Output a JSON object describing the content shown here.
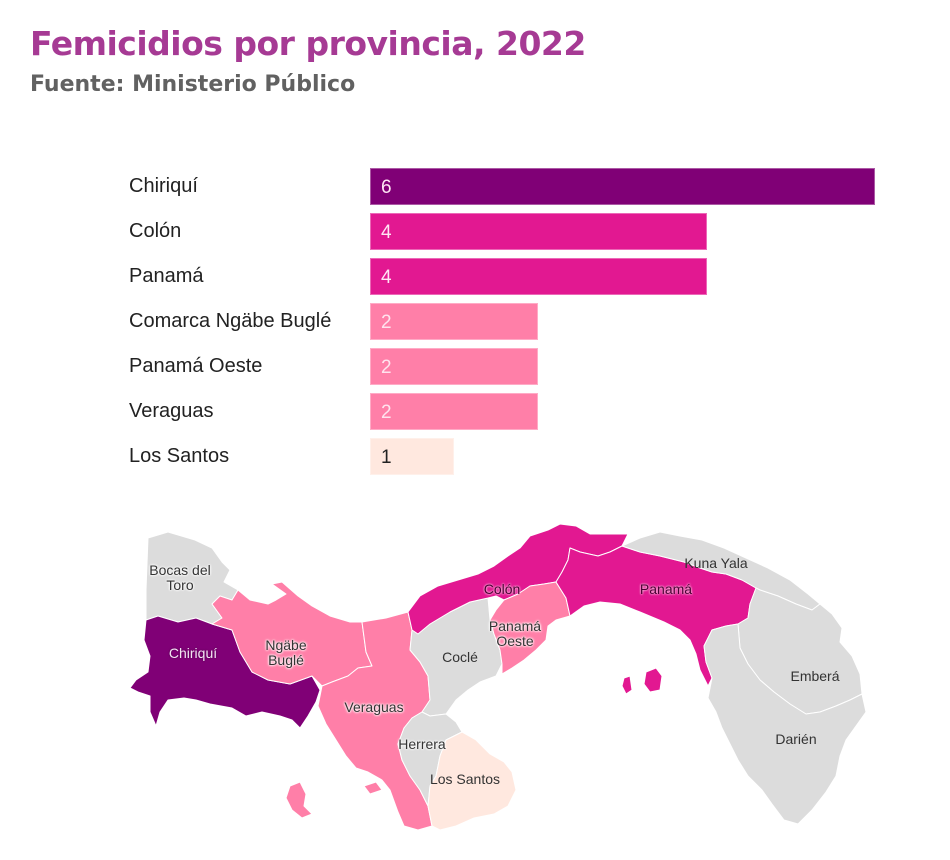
{
  "header": {
    "title": "Femicidios por provincia, 2022",
    "subtitle": "Fuente: Ministerio Público"
  },
  "colors": {
    "title": "#a63a94",
    "subtitle": "#616161",
    "level_6": "#800076",
    "level_4": "#e21891",
    "level_2": "#ff7fa8",
    "level_1": "#ffe8df",
    "level_0": "#dcdcdc"
  },
  "chart_data": {
    "type": "bar",
    "orientation": "horizontal",
    "title": "Femicidios por provincia, 2022",
    "subtitle": "Fuente: Ministerio Público",
    "xlabel": "",
    "ylabel": "",
    "categories": [
      "Chiriquí",
      "Colón",
      "Panamá",
      "Comarca Ngäbe Buglé",
      "Panamá Oeste",
      "Veraguas",
      "Los Santos"
    ],
    "values": [
      6,
      4,
      4,
      2,
      2,
      2,
      1
    ],
    "value_labels": [
      "6",
      "4",
      "4",
      "2",
      "2",
      "2",
      "1"
    ],
    "bar_colors": [
      "#800076",
      "#e21891",
      "#e21891",
      "#ff7fa8",
      "#ff7fa8",
      "#ff7fa8",
      "#ffe8df"
    ],
    "xlim": [
      0,
      6
    ],
    "grid": false,
    "legend": "none",
    "data_labels": "inside-left"
  },
  "map": {
    "type": "choropleth",
    "regions": [
      {
        "name": "Bocas del Toro",
        "value": 0
      },
      {
        "name": "Chiriquí",
        "value": 6
      },
      {
        "name": "Ngäbe Buglé",
        "value": 2
      },
      {
        "name": "Veraguas",
        "value": 2
      },
      {
        "name": "Coclé",
        "value": 0
      },
      {
        "name": "Herrera",
        "value": 0
      },
      {
        "name": "Los Santos",
        "value": 1
      },
      {
        "name": "Colón",
        "value": 4
      },
      {
        "name": "Panamá Oeste",
        "value": 2
      },
      {
        "name": "Panamá",
        "value": 4
      },
      {
        "name": "Kuna Yala",
        "value": 0
      },
      {
        "name": "Emberá",
        "value": 0
      },
      {
        "name": "Darién",
        "value": 0
      }
    ],
    "labels": {
      "bocas": "Bocas del\nToro",
      "chiriqui": "Chiriquí",
      "ngabe": "Ngäbe\nBuglé",
      "veraguas": "Veraguas",
      "cocle": "Coclé",
      "herrera": "Herrera",
      "los_santos": "Los Santos",
      "colon": "Colón",
      "panama_oeste": "Panamá\nOeste",
      "panama": "Panamá",
      "kuna_yala": "Kuna Yala",
      "embera": "Emberá",
      "darien": "Darién"
    }
  }
}
